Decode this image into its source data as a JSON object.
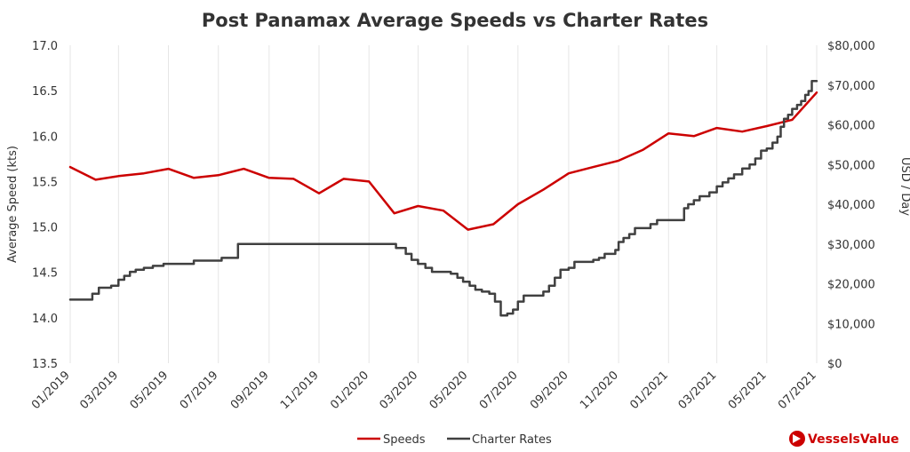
{
  "chart_data": {
    "type": "line",
    "title": "Post Panamax Average Speeds vs Charter Rates",
    "ylabel_left": "Average Speed (kts)",
    "ylabel_right": "USD / Day",
    "ylim_left": [
      13.5,
      17.0
    ],
    "ylim_right": [
      0,
      80000
    ],
    "yticks_left": [
      "13.5",
      "14.0",
      "14.5",
      "15.0",
      "15.5",
      "16.0",
      "16.5",
      "17.0"
    ],
    "yticks_right": [
      "$0",
      "$10,000",
      "$20,000",
      "$30,000",
      "$40,000",
      "$50,000",
      "$60,000",
      "$70,000",
      "$80,000"
    ],
    "x_range": [
      "2019-01-01",
      "2021-07-01"
    ],
    "xticks": [
      "01/2019",
      "03/2019",
      "05/2019",
      "07/2019",
      "09/2019",
      "11/2019",
      "01/2020",
      "03/2020",
      "05/2020",
      "07/2020",
      "09/2020",
      "11/2020",
      "01/2021",
      "03/2021",
      "05/2021",
      "07/2021"
    ],
    "grid": "vertical",
    "legend_position": "bottom",
    "series": [
      {
        "name": "Speeds",
        "axis": "left",
        "color": "#cc0000",
        "style": "line",
        "points": [
          [
            "2019-01-01",
            15.66
          ],
          [
            "2019-02-01",
            15.52
          ],
          [
            "2019-03-01",
            15.56
          ],
          [
            "2019-04-01",
            15.59
          ],
          [
            "2019-05-01",
            15.64
          ],
          [
            "2019-06-01",
            15.54
          ],
          [
            "2019-07-01",
            15.57
          ],
          [
            "2019-08-01",
            15.64
          ],
          [
            "2019-09-01",
            15.54
          ],
          [
            "2019-10-01",
            15.53
          ],
          [
            "2019-11-01",
            15.37
          ],
          [
            "2019-12-01",
            15.53
          ],
          [
            "2020-01-01",
            15.5
          ],
          [
            "2020-02-01",
            15.15
          ],
          [
            "2020-03-01",
            15.23
          ],
          [
            "2020-04-01",
            15.18
          ],
          [
            "2020-05-01",
            14.97
          ],
          [
            "2020-06-01",
            15.03
          ],
          [
            "2020-07-01",
            15.25
          ],
          [
            "2020-08-01",
            15.41
          ],
          [
            "2020-09-01",
            15.59
          ],
          [
            "2020-10-01",
            15.66
          ],
          [
            "2020-11-01",
            15.73
          ],
          [
            "2020-12-01",
            15.85
          ],
          [
            "2021-01-01",
            16.03
          ],
          [
            "2021-02-01",
            16.0
          ],
          [
            "2021-03-01",
            16.09
          ],
          [
            "2021-04-01",
            16.05
          ],
          [
            "2021-05-01",
            16.11
          ],
          [
            "2021-06-01",
            16.18
          ],
          [
            "2021-07-01",
            16.48
          ]
        ]
      },
      {
        "name": "Charter Rates",
        "axis": "right",
        "color": "#404040",
        "style": "step",
        "points": [
          [
            "2019-01-01",
            16000
          ],
          [
            "2019-01-20",
            16000
          ],
          [
            "2019-01-28",
            17500
          ],
          [
            "2019-02-05",
            19000
          ],
          [
            "2019-02-20",
            19500
          ],
          [
            "2019-03-01",
            21000
          ],
          [
            "2019-03-08",
            22000
          ],
          [
            "2019-03-15",
            23000
          ],
          [
            "2019-03-22",
            23500
          ],
          [
            "2019-04-01",
            24000
          ],
          [
            "2019-04-12",
            24500
          ],
          [
            "2019-04-25",
            25000
          ],
          [
            "2019-05-20",
            25000
          ],
          [
            "2019-06-01",
            25800
          ],
          [
            "2019-06-20",
            25800
          ],
          [
            "2019-07-01",
            25800
          ],
          [
            "2019-07-05",
            26500
          ],
          [
            "2019-07-15",
            26500
          ],
          [
            "2019-07-25",
            30000
          ],
          [
            "2019-09-01",
            30000
          ],
          [
            "2019-11-01",
            30000
          ],
          [
            "2020-01-01",
            30000
          ],
          [
            "2020-01-31",
            30000
          ],
          [
            "2020-02-03",
            29000
          ],
          [
            "2020-02-15",
            27500
          ],
          [
            "2020-02-22",
            26000
          ],
          [
            "2020-03-01",
            25000
          ],
          [
            "2020-03-10",
            24000
          ],
          [
            "2020-03-18",
            23000
          ],
          [
            "2020-04-10",
            22500
          ],
          [
            "2020-04-18",
            21500
          ],
          [
            "2020-04-25",
            20500
          ],
          [
            "2020-05-03",
            19500
          ],
          [
            "2020-05-10",
            18500
          ],
          [
            "2020-05-18",
            18000
          ],
          [
            "2020-05-27",
            17500
          ],
          [
            "2020-06-03",
            15500
          ],
          [
            "2020-06-10",
            12000
          ],
          [
            "2020-06-18",
            12500
          ],
          [
            "2020-06-25",
            13500
          ],
          [
            "2020-07-01",
            15500
          ],
          [
            "2020-07-08",
            17000
          ],
          [
            "2020-07-25",
            17000
          ],
          [
            "2020-08-01",
            18000
          ],
          [
            "2020-08-08",
            19500
          ],
          [
            "2020-08-15",
            21500
          ],
          [
            "2020-08-22",
            23500
          ],
          [
            "2020-09-01",
            24000
          ],
          [
            "2020-09-08",
            25500
          ],
          [
            "2020-09-22",
            25500
          ],
          [
            "2020-10-01",
            26000
          ],
          [
            "2020-10-08",
            26500
          ],
          [
            "2020-10-15",
            27500
          ],
          [
            "2020-10-28",
            28500
          ],
          [
            "2020-11-01",
            30500
          ],
          [
            "2020-11-07",
            31500
          ],
          [
            "2020-11-14",
            32500
          ],
          [
            "2020-11-21",
            34000
          ],
          [
            "2020-12-05",
            34000
          ],
          [
            "2020-12-10",
            35000
          ],
          [
            "2020-12-18",
            36000
          ],
          [
            "2021-01-01",
            36000
          ],
          [
            "2021-01-15",
            36000
          ],
          [
            "2021-01-20",
            39000
          ],
          [
            "2021-01-25",
            40000
          ],
          [
            "2021-02-01",
            41000
          ],
          [
            "2021-02-08",
            42000
          ],
          [
            "2021-02-20",
            43000
          ],
          [
            "2021-03-01",
            44500
          ],
          [
            "2021-03-08",
            45500
          ],
          [
            "2021-03-15",
            46500
          ],
          [
            "2021-03-22",
            47500
          ],
          [
            "2021-04-01",
            49000
          ],
          [
            "2021-04-10",
            50000
          ],
          [
            "2021-04-17",
            51500
          ],
          [
            "2021-04-24",
            53500
          ],
          [
            "2021-05-01",
            54000
          ],
          [
            "2021-05-08",
            55500
          ],
          [
            "2021-05-14",
            57000
          ],
          [
            "2021-05-18",
            59500
          ],
          [
            "2021-05-22",
            61500
          ],
          [
            "2021-05-27",
            62500
          ],
          [
            "2021-06-01",
            64000
          ],
          [
            "2021-06-07",
            65000
          ],
          [
            "2021-06-12",
            66000
          ],
          [
            "2021-06-17",
            67500
          ],
          [
            "2021-06-21",
            68500
          ],
          [
            "2021-06-25",
            71000
          ],
          [
            "2021-07-01",
            71000
          ]
        ]
      }
    ]
  },
  "legend": {
    "speeds_label": "Speeds",
    "charter_label": "Charter Rates"
  },
  "brand": {
    "name": "VesselsValue",
    "color": "#cc0000"
  }
}
